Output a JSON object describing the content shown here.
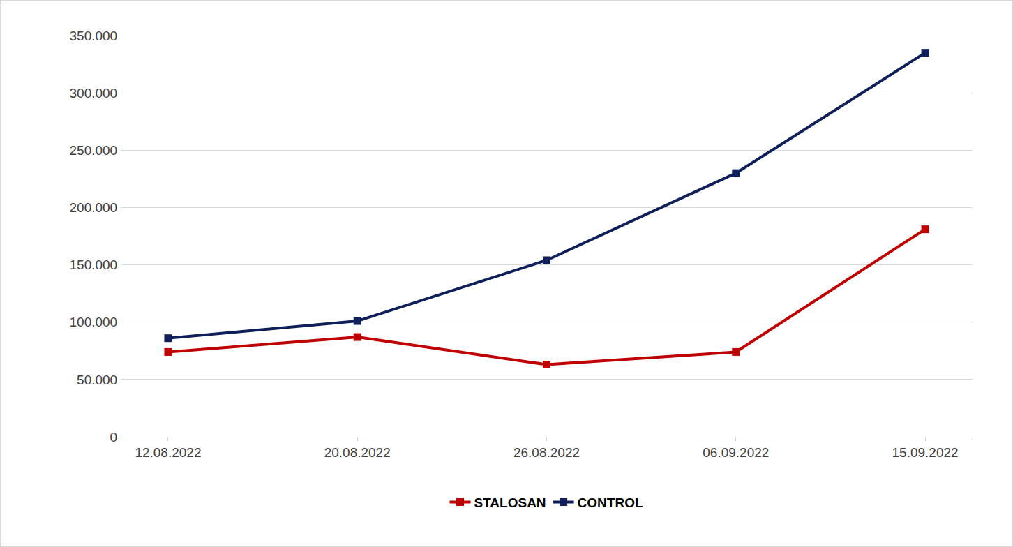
{
  "chart_data": {
    "type": "line",
    "categories": [
      "12.08.2022",
      "20.08.2022",
      "26.08.2022",
      "06.09.2022",
      "15.09.2022"
    ],
    "series": [
      {
        "name": "STALOSAN",
        "color": "#c00000",
        "values": [
          74000,
          87000,
          63000,
          74000,
          181000
        ]
      },
      {
        "name": "CONTROL",
        "color": "#0f1f5a",
        "values": [
          86000,
          101000,
          154000,
          230000,
          335000
        ]
      }
    ],
    "ylim": [
      0,
      350000
    ],
    "yticks": [
      0,
      {
        "value": 50000,
        "label": "50.000"
      },
      {
        "value": 100000,
        "label": "100.000"
      },
      {
        "value": 150000,
        "label": "150.000"
      },
      {
        "value": 200000,
        "label": "200.000"
      },
      {
        "value": 250000,
        "label": "250.000"
      },
      {
        "value": 300000,
        "label": "300.000"
      },
      {
        "value": 350000,
        "label": "350.000"
      }
    ],
    "grid": true,
    "legend": "bottom",
    "marker": "square"
  }
}
